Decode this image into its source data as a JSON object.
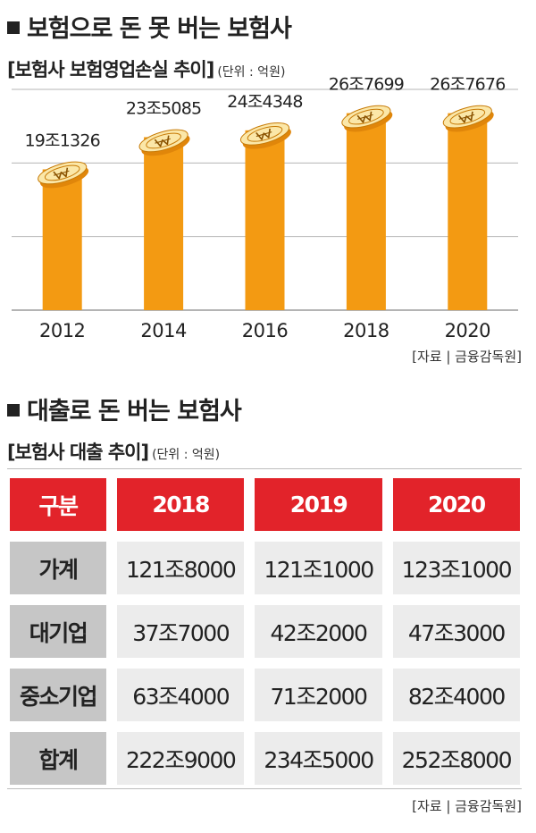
{
  "section1": {
    "title": "보험으로 돈 못 버는 보험사",
    "chart_title": "[보험사 보험영업손실 추이]",
    "unit": "(단위 : 억원)",
    "source": "[자료 | 금융감독원]"
  },
  "chart_data": {
    "type": "bar",
    "title": "보험사 보험영업손실 추이",
    "unit": "억원",
    "categories": [
      "2012",
      "2014",
      "2016",
      "2018",
      "2020"
    ],
    "values": [
      191326,
      235085,
      244348,
      267699,
      267676
    ],
    "labels": [
      "19조1326",
      "23조5085",
      "24조4348",
      "26조7699",
      "26조7676"
    ],
    "ylim": [
      0,
      300000
    ],
    "grid": true,
    "bar_color": "#f39a12",
    "icon": "won-coin-stack-icon"
  },
  "section2": {
    "title": "대출로 돈 버는 보험사",
    "table_title": "[보험사 대출 추이]",
    "unit": "(단위 : 억원)",
    "source": "[자료 | 금융감독원]",
    "header": [
      "구분",
      "2018",
      "2019",
      "2020"
    ],
    "rows": [
      [
        "가계",
        "121조8000",
        "121조1000",
        "123조1000"
      ],
      [
        "대기업",
        "37조7000",
        "42조2000",
        "47조3000"
      ],
      [
        "중소기업",
        "63조4000",
        "71조2000",
        "82조4000"
      ],
      [
        "합계",
        "222조9000",
        "234조5000",
        "252조8000"
      ]
    ],
    "colors": {
      "header": "#e2232a",
      "label_cell": "#c6c6c6",
      "value_cell": "#ececec"
    }
  }
}
